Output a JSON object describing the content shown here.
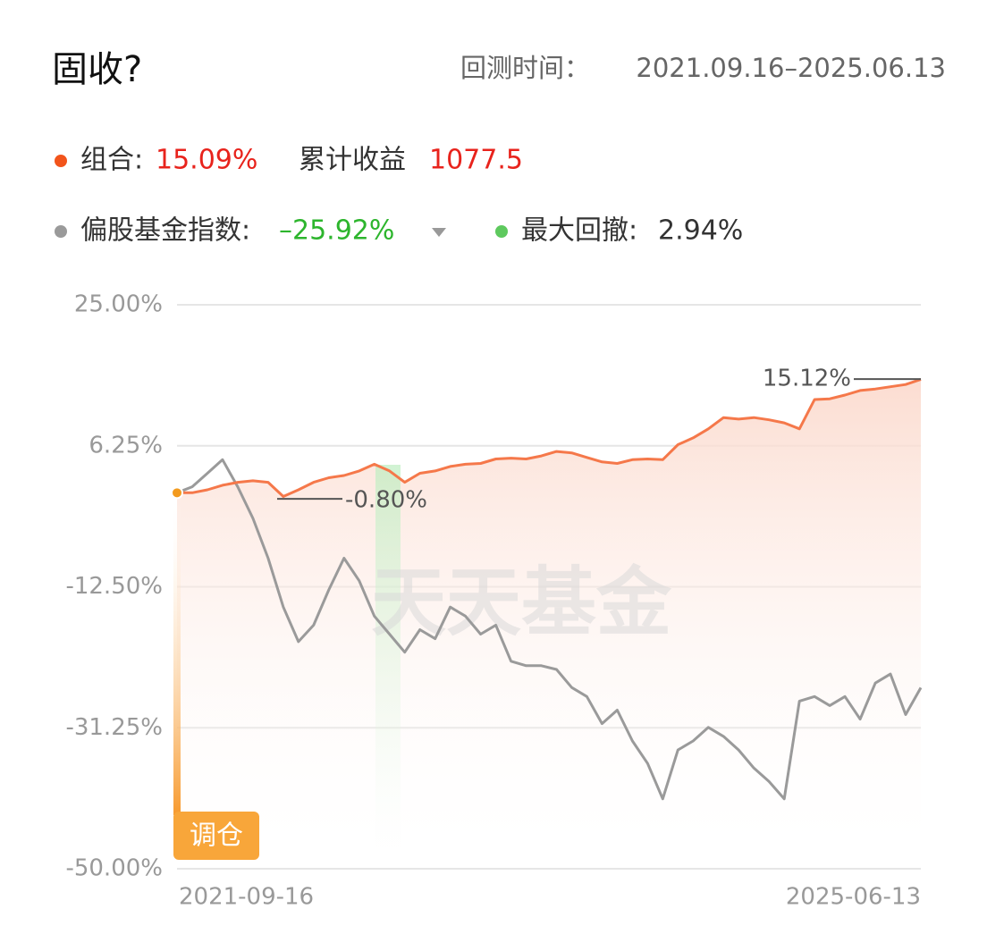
{
  "header": {
    "title": "固收?",
    "period_label": "回测时间：",
    "period": "2021.09.16–2025.06.13"
  },
  "legend": {
    "portfolio_label": "组合:",
    "portfolio_value": "15.09%",
    "cumulative_label": "累计收益",
    "cumulative_value": "1077.5",
    "index_label": "偏股基金指数:",
    "index_value": "–25.92%",
    "drawdown_label": "最大回撤:",
    "drawdown_value": "2.94%"
  },
  "badge": "调仓",
  "watermark": "天天基金",
  "chart_data": {
    "type": "line",
    "categories": [
      "2021-09-16",
      null,
      null,
      null,
      null,
      null,
      null,
      null,
      null,
      null,
      null,
      null,
      null,
      null,
      null,
      null,
      null,
      null,
      null,
      null,
      null,
      null,
      null,
      null,
      null,
      null,
      null,
      null,
      null,
      null,
      null,
      null,
      null,
      null,
      null,
      null,
      null,
      null,
      null,
      null,
      null,
      null,
      null,
      null,
      null,
      null,
      null,
      null,
      null,
      "2025-06-13"
    ],
    "series": [
      {
        "name": "组合",
        "color": "#f5784a",
        "values": [
          0,
          0,
          0.4,
          1.0,
          1.4,
          1.6,
          1.4,
          -0.5,
          0.4,
          1.4,
          2.0,
          2.3,
          2.9,
          3.8,
          2.9,
          1.4,
          2.6,
          2.9,
          3.5,
          3.8,
          3.9,
          4.5,
          4.6,
          4.5,
          4.9,
          5.5,
          5.3,
          4.7,
          4.1,
          3.9,
          4.4,
          4.5,
          4.4,
          6.4,
          7.3,
          8.5,
          10.0,
          9.8,
          10.0,
          9.7,
          9.3,
          8.5,
          12.4,
          12.5,
          13.0,
          13.6,
          13.8,
          14.1,
          14.4,
          15.09
        ]
      },
      {
        "name": "偏股基金指数",
        "color": "#9a9a9a",
        "values": [
          0,
          0.8,
          2.6,
          4.4,
          0.8,
          -3.4,
          -8.7,
          -15.2,
          -19.8,
          -17.6,
          -12.9,
          -8.7,
          -11.7,
          -16.4,
          -18.8,
          -21.2,
          -18.2,
          -19.4,
          -15.2,
          -16.4,
          -18.8,
          -17.6,
          -22.4,
          -23.0,
          -23.0,
          -23.5,
          -25.9,
          -27.1,
          -30.7,
          -28.9,
          -33.0,
          -36.0,
          -40.7,
          -34.2,
          -33.0,
          -31.2,
          -32.4,
          -34.2,
          -36.6,
          -38.4,
          -40.7,
          -27.7,
          -27.1,
          -28.3,
          -27.1,
          -30.1,
          -25.3,
          -24.1,
          -29.5,
          -25.92
        ]
      }
    ],
    "ylim": [
      -50,
      25
    ],
    "yticks": [
      {
        "value": -50,
        "label": "-50.00%"
      },
      {
        "value": -31.25,
        "label": "-31.25%"
      },
      {
        "value": -12.5,
        "label": "-12.50%"
      },
      {
        "value": 6.25,
        "label": "6.25%"
      },
      {
        "value": 25,
        "label": "25.00%"
      }
    ],
    "grid": true,
    "annotations": [
      {
        "value": 15.12,
        "label": "15.12%"
      },
      {
        "value": -0.8,
        "label": "-0.80%"
      }
    ]
  }
}
